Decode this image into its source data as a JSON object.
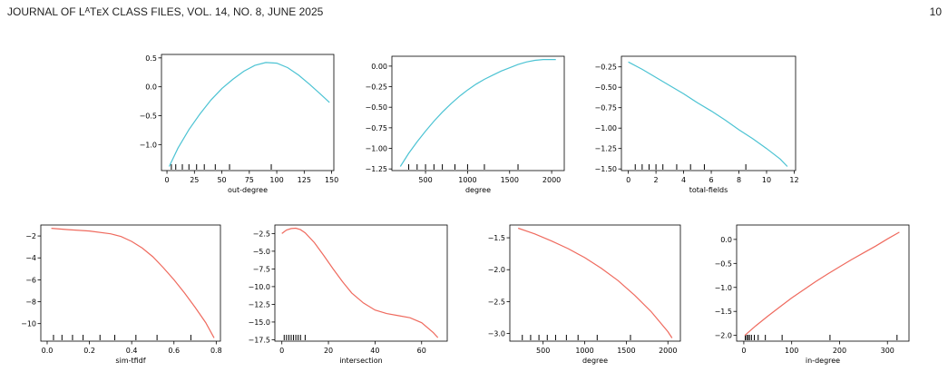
{
  "header": {
    "title": "JOURNAL OF LᴬTᴇX CLASS FILES, VOL. 14, NO. 8, JUNE 2025",
    "page_number": "10"
  },
  "colors": {
    "top_row": "#4cc3d3",
    "bottom_row": "#ef6a5e",
    "axis": "#000000"
  },
  "chart_data": [
    {
      "type": "line",
      "xlabel": "out-degree",
      "ylabel": "",
      "xlim": [
        -5,
        152
      ],
      "ylim": [
        -1.45,
        0.56
      ],
      "xticks": [
        0,
        25,
        50,
        75,
        100,
        125,
        150
      ],
      "xtick_labels": [
        "0",
        "25",
        "50",
        "75",
        "100",
        "125",
        "150"
      ],
      "yticks": [
        0.5,
        0.0,
        -0.5,
        -1.0
      ],
      "ytick_labels": [
        "0.5",
        "0.0",
        "−0.5",
        "−1.0"
      ],
      "x": [
        2,
        10,
        20,
        30,
        40,
        50,
        60,
        70,
        80,
        90,
        100,
        110,
        120,
        130,
        140,
        148
      ],
      "y": [
        -1.38,
        -1.06,
        -0.74,
        -0.47,
        -0.23,
        -0.03,
        0.13,
        0.27,
        0.37,
        0.42,
        0.41,
        0.33,
        0.2,
        0.04,
        -0.13,
        -0.27
      ],
      "rug": [
        4,
        8,
        14,
        20,
        27,
        34,
        44,
        57,
        95
      ]
    },
    {
      "type": "line",
      "xlabel": "degree",
      "ylabel": "",
      "xlim": [
        100,
        2150
      ],
      "ylim": [
        -1.27,
        0.12
      ],
      "xticks": [
        500,
        1000,
        1500,
        2000
      ],
      "xtick_labels": [
        "500",
        "1000",
        "1500",
        "2000"
      ],
      "yticks": [
        0.0,
        -0.25,
        -0.5,
        -0.75,
        -1.0,
        -1.25
      ],
      "ytick_labels": [
        "0.00",
        "−0.25",
        "−0.50",
        "−0.75",
        "−1.00",
        "−1.25"
      ],
      "x": [
        200,
        300,
        400,
        500,
        600,
        700,
        800,
        900,
        1000,
        1100,
        1200,
        1300,
        1400,
        1500,
        1600,
        1700,
        1800,
        1900,
        2000,
        2050
      ],
      "y": [
        -1.22,
        -1.06,
        -0.92,
        -0.79,
        -0.67,
        -0.56,
        -0.46,
        -0.37,
        -0.29,
        -0.22,
        -0.16,
        -0.11,
        -0.06,
        -0.02,
        0.02,
        0.05,
        0.07,
        0.08,
        0.08,
        0.08
      ],
      "rug": [
        300,
        400,
        500,
        600,
        700,
        850,
        1000,
        1200,
        1600
      ]
    },
    {
      "type": "line",
      "xlabel": "total-fields",
      "ylabel": "",
      "xlim": [
        -0.5,
        12.1
      ],
      "ylim": [
        -1.52,
        -0.12
      ],
      "xticks": [
        0,
        2,
        4,
        6,
        8,
        10,
        12
      ],
      "xtick_labels": [
        "0",
        "2",
        "4",
        "6",
        "8",
        "10",
        "12"
      ],
      "yticks": [
        -0.25,
        -0.5,
        -0.75,
        -1.0,
        -1.25,
        -1.5
      ],
      "ytick_labels": [
        "−0.25",
        "−0.50",
        "−0.75",
        "−1.00",
        "−1.25",
        "−1.50"
      ],
      "x": [
        0,
        1,
        2,
        3,
        4,
        5,
        6,
        7,
        8,
        9,
        10,
        11,
        11.5
      ],
      "y": [
        -0.19,
        -0.28,
        -0.38,
        -0.48,
        -0.58,
        -0.69,
        -0.79,
        -0.9,
        -1.02,
        -1.13,
        -1.25,
        -1.38,
        -1.47
      ],
      "rug": [
        0.5,
        1,
        1.5,
        2,
        2.5,
        3.5,
        4.5,
        5.5,
        8.5
      ]
    },
    {
      "type": "line",
      "xlabel": "sim-tfidf",
      "ylabel": "",
      "xlim": [
        -0.03,
        0.82
      ],
      "ylim": [
        -11.6,
        -1.0
      ],
      "xticks": [
        0.0,
        0.2,
        0.4,
        0.6,
        0.8
      ],
      "xtick_labels": [
        "0.0",
        "0.2",
        "0.4",
        "0.6",
        "0.8"
      ],
      "yticks": [
        -2,
        -4,
        -6,
        -8,
        -10
      ],
      "ytick_labels": [
        "−2",
        "−4",
        "−6",
        "−8",
        "−10"
      ],
      "x": [
        0.02,
        0.1,
        0.2,
        0.3,
        0.35,
        0.4,
        0.45,
        0.5,
        0.55,
        0.6,
        0.65,
        0.7,
        0.75,
        0.79
      ],
      "y": [
        -1.3,
        -1.42,
        -1.55,
        -1.8,
        -2.05,
        -2.5,
        -3.1,
        -3.9,
        -4.9,
        -6.0,
        -7.2,
        -8.5,
        -9.9,
        -11.3
      ],
      "rug": [
        0.03,
        0.07,
        0.12,
        0.17,
        0.25,
        0.32,
        0.42,
        0.52,
        0.68
      ]
    },
    {
      "type": "line",
      "xlabel": "intersection",
      "ylabel": "",
      "xlim": [
        -3,
        71
      ],
      "ylim": [
        -17.7,
        -1.3
      ],
      "xticks": [
        0,
        20,
        40,
        60
      ],
      "xtick_labels": [
        "0",
        "20",
        "40",
        "60"
      ],
      "yticks": [
        -2.5,
        -5.0,
        -7.5,
        -10.0,
        -12.5,
        -15.0,
        -17.5
      ],
      "ytick_labels": [
        "−2.5",
        "−5.0",
        "−7.5",
        "−10.0",
        "−12.5",
        "−15.0",
        "−17.5"
      ],
      "x": [
        0,
        2,
        4,
        6,
        8,
        10,
        14,
        18,
        22,
        26,
        30,
        35,
        40,
        45,
        50,
        55,
        60,
        65,
        67
      ],
      "y": [
        -2.5,
        -2.0,
        -1.8,
        -1.75,
        -1.95,
        -2.4,
        -3.8,
        -5.6,
        -7.5,
        -9.3,
        -10.9,
        -12.3,
        -13.3,
        -13.8,
        -14.1,
        -14.4,
        -15.1,
        -16.5,
        -17.2
      ],
      "rug": [
        1,
        2,
        3,
        4,
        5,
        6,
        7,
        8,
        10
      ]
    },
    {
      "type": "line",
      "xlabel": "degree",
      "ylabel": "",
      "xlim": [
        100,
        2150
      ],
      "ylim": [
        -3.12,
        -1.3
      ],
      "xticks": [
        500,
        1000,
        1500,
        2000
      ],
      "xtick_labels": [
        "500",
        "1000",
        "1500",
        "2000"
      ],
      "yticks": [
        -1.5,
        -2.0,
        -2.5,
        -3.0
      ],
      "ytick_labels": [
        "−1.5",
        "−2.0",
        "−2.5",
        "−3.0"
      ],
      "x": [
        200,
        400,
        600,
        800,
        1000,
        1200,
        1400,
        1600,
        1800,
        2000,
        2050
      ],
      "y": [
        -1.35,
        -1.44,
        -1.55,
        -1.67,
        -1.81,
        -1.98,
        -2.17,
        -2.4,
        -2.66,
        -2.97,
        -3.07
      ],
      "rug": [
        250,
        350,
        450,
        550,
        650,
        780,
        920,
        1150,
        1550
      ]
    },
    {
      "type": "line",
      "xlabel": "in-degree",
      "ylabel": "",
      "xlim": [
        -15,
        345
      ],
      "ylim": [
        -2.12,
        0.3
      ],
      "xticks": [
        0,
        100,
        200,
        300
      ],
      "xtick_labels": [
        "0",
        "100",
        "200",
        "300"
      ],
      "yticks": [
        0.0,
        -0.5,
        -1.0,
        -1.5,
        -2.0
      ],
      "ytick_labels": [
        "0.0",
        "−0.5",
        "−1.0",
        "−1.5",
        "−2.0"
      ],
      "x": [
        2,
        25,
        50,
        75,
        100,
        125,
        150,
        175,
        200,
        225,
        250,
        275,
        300,
        325
      ],
      "y": [
        -2.0,
        -1.8,
        -1.6,
        -1.41,
        -1.22,
        -1.05,
        -0.88,
        -0.72,
        -0.57,
        -0.42,
        -0.28,
        -0.14,
        0.01,
        0.15
      ],
      "rug": [
        3,
        6,
        9,
        12,
        16,
        22,
        30,
        45,
        80,
        180,
        320
      ]
    }
  ]
}
